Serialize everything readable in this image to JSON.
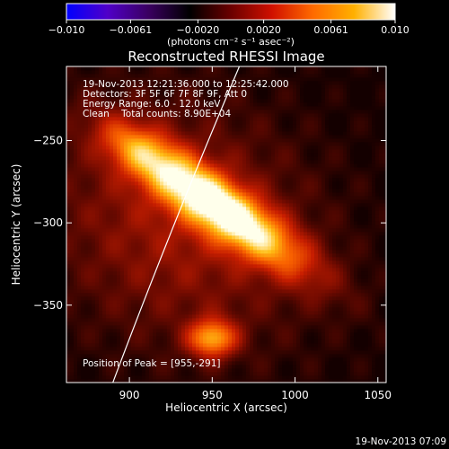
{
  "chart_data": {
    "type": "heatmap",
    "title": "Reconstructed RHESSI Image",
    "xlabel": "Heliocentric X (arcsec)",
    "ylabel": "Heliocentric Y (arcsec)",
    "xlim": [
      862,
      1055
    ],
    "ylim": [
      -397,
      -205
    ],
    "x_ticks": [
      900,
      950,
      1000,
      1050
    ],
    "x_tick_labels": [
      "900",
      "950",
      "1000",
      "1050"
    ],
    "y_ticks": [
      -250,
      -300,
      -350
    ],
    "y_tick_labels": [
      "−250",
      "−300",
      "−350"
    ],
    "colorbar": {
      "label": "(photons cm⁻² s⁻¹ asec⁻²)",
      "range": [
        -0.01,
        0.01
      ],
      "ticks": [
        -0.01,
        -0.0061,
        -0.002,
        0.002,
        0.0061,
        0.01
      ],
      "tick_labels": [
        "−0.010",
        "−0.0061",
        "−0.0020",
        "0.0020",
        "0.0061",
        "0.010"
      ],
      "colormap": [
        "#0000ff",
        "#5000c8",
        "#3a0060",
        "#000000",
        "#6a0000",
        "#d01000",
        "#ff6a00",
        "#ffb000",
        "#ffffff"
      ]
    },
    "annotations": [
      "19-Nov-2013 12:21:36.000 to 12:25:42.000",
      "Detectors: 3F 5F 6F 7F 8F 9F, Att 0",
      "Energy Range: 6.0 - 12.0 keV",
      "Clean    Total counts: 8.90E+04",
      "Position of Peak = [955,-291]"
    ],
    "sources": [
      {
        "name": "main source",
        "x": 955,
        "y": -291,
        "sx": 42,
        "sy": 11,
        "angle_deg": -35,
        "amplitude": 0.01
      },
      {
        "name": "southern source",
        "x": 950,
        "y": -370,
        "sx": 10,
        "sy": 8,
        "angle_deg": 0,
        "amplitude": 0.0068
      },
      {
        "name": "diffuse emission",
        "x": 930,
        "y": -300,
        "sx": 60,
        "sy": 50,
        "angle_deg": -30,
        "amplitude": 0.003
      },
      {
        "name": "upper-left lobe",
        "x": 905,
        "y": -255,
        "sx": 18,
        "sy": 10,
        "angle_deg": -30,
        "amplitude": 0.003
      }
    ],
    "limb": {
      "x_at_top": 971,
      "x_at_bottom": 889
    }
  },
  "footer": {
    "timestamp": "19-Nov-2013 07:09"
  }
}
